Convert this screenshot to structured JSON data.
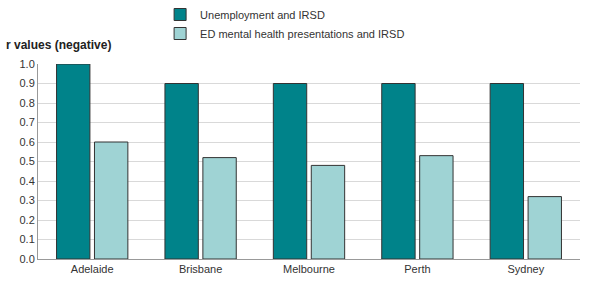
{
  "chart_data": {
    "type": "bar",
    "y_label": "r values (negative)",
    "categories": [
      "Adelaide",
      "Brisbane",
      "Melbourne",
      "Perth",
      "Sydney"
    ],
    "series": [
      {
        "name": "Unemployment and IRSD",
        "color": "#00838a",
        "values": [
          1.0,
          0.9,
          0.9,
          0.9,
          0.9
        ]
      },
      {
        "name": "ED mental health presentations and IRSD",
        "color": "#9fd3d4",
        "values": [
          0.6,
          0.52,
          0.48,
          0.53,
          0.32
        ]
      }
    ],
    "ylim": [
      0,
      1
    ],
    "yticks": [
      {
        "value": 0,
        "label": "0.0"
      },
      {
        "value": 0.1,
        "label": "0.1"
      },
      {
        "value": 0.2,
        "label": "0.2"
      },
      {
        "value": 0.3,
        "label": "0.3"
      },
      {
        "value": 0.4,
        "label": "0.4"
      },
      {
        "value": 0.5,
        "label": "0.5"
      },
      {
        "value": 0.6,
        "label": "0.6"
      },
      {
        "value": 0.7,
        "label": "0.7"
      },
      {
        "value": 0.8,
        "label": "0.8"
      },
      {
        "value": 0.9,
        "label": "0.9"
      },
      {
        "value": 1,
        "label": "1.0"
      }
    ],
    "grid": true,
    "legend": "top"
  }
}
